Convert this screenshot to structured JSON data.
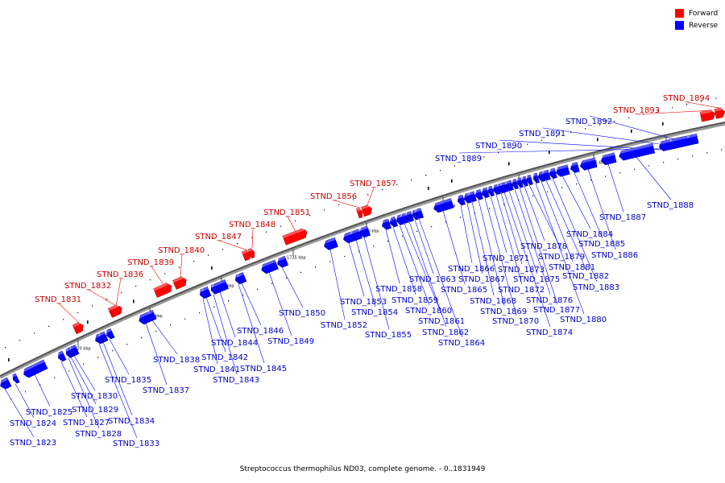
{
  "title": "Streptococcus thermophilus ND03, complete genome. - 0..1831949",
  "legend": {
    "forward": {
      "label": "Forward",
      "color": "#ff0000"
    },
    "reverse": {
      "label": "Reverse",
      "color": "#0000ff"
    }
  },
  "colors": {
    "forward": "#ff0000",
    "reverse": "#0000ff",
    "forward_text": "#cc0000",
    "reverse_text": "#0000cc"
  },
  "ticks": [
    "1720 kbp",
    "1725 kbp",
    "1730 kbp",
    "1735 kbp",
    "1740 kbp",
    "1745 kbp",
    "1750 kbp",
    "1755 kbp",
    "1760 kbp"
  ],
  "genes": [
    {
      "name": "STND_1823",
      "strand": "reverse"
    },
    {
      "name": "STND_1824",
      "strand": "reverse"
    },
    {
      "name": "STND_1825",
      "strand": "reverse"
    },
    {
      "name": "STND_1827",
      "strand": "reverse"
    },
    {
      "name": "STND_1828",
      "strand": "reverse"
    },
    {
      "name": "STND_1829",
      "strand": "reverse"
    },
    {
      "name": "STND_1830",
      "strand": "reverse"
    },
    {
      "name": "STND_1831",
      "strand": "forward"
    },
    {
      "name": "STND_1832",
      "strand": "forward"
    },
    {
      "name": "STND_1833",
      "strand": "reverse"
    },
    {
      "name": "STND_1834",
      "strand": "reverse"
    },
    {
      "name": "STND_1835",
      "strand": "reverse"
    },
    {
      "name": "STND_1836",
      "strand": "forward"
    },
    {
      "name": "STND_1837",
      "strand": "reverse"
    },
    {
      "name": "STND_1838",
      "strand": "reverse"
    },
    {
      "name": "STND_1839",
      "strand": "forward"
    },
    {
      "name": "STND_1840",
      "strand": "forward"
    },
    {
      "name": "STND_1841",
      "strand": "reverse"
    },
    {
      "name": "STND_1842",
      "strand": "reverse"
    },
    {
      "name": "STND_1843",
      "strand": "reverse"
    },
    {
      "name": "STND_1844",
      "strand": "reverse"
    },
    {
      "name": "STND_1845",
      "strand": "reverse"
    },
    {
      "name": "STND_1846",
      "strand": "reverse"
    },
    {
      "name": "STND_1847",
      "strand": "forward"
    },
    {
      "name": "STND_1848",
      "strand": "forward"
    },
    {
      "name": "STND_1849",
      "strand": "reverse"
    },
    {
      "name": "STND_1850",
      "strand": "reverse"
    },
    {
      "name": "STND_1851",
      "strand": "forward"
    },
    {
      "name": "STND_1852",
      "strand": "reverse"
    },
    {
      "name": "STND_1853",
      "strand": "reverse"
    },
    {
      "name": "STND_1854",
      "strand": "reverse"
    },
    {
      "name": "STND_1855",
      "strand": "reverse"
    },
    {
      "name": "STND_1856",
      "strand": "forward"
    },
    {
      "name": "STND_1857",
      "strand": "forward"
    },
    {
      "name": "STND_1858",
      "strand": "reverse"
    },
    {
      "name": "STND_1859",
      "strand": "reverse"
    },
    {
      "name": "STND_1860",
      "strand": "reverse"
    },
    {
      "name": "STND_1861",
      "strand": "reverse"
    },
    {
      "name": "STND_1862",
      "strand": "reverse"
    },
    {
      "name": "STND_1863",
      "strand": "reverse"
    },
    {
      "name": "STND_1864",
      "strand": "reverse"
    },
    {
      "name": "STND_1865",
      "strand": "reverse"
    },
    {
      "name": "STND_1866",
      "strand": "reverse"
    },
    {
      "name": "STND_1867",
      "strand": "reverse"
    },
    {
      "name": "STND_1868",
      "strand": "reverse"
    },
    {
      "name": "STND_1869",
      "strand": "reverse"
    },
    {
      "name": "STND_1870",
      "strand": "reverse"
    },
    {
      "name": "STND_1871",
      "strand": "reverse"
    },
    {
      "name": "STND_1872",
      "strand": "reverse"
    },
    {
      "name": "STND_1873",
      "strand": "reverse"
    },
    {
      "name": "STND_1874",
      "strand": "reverse"
    },
    {
      "name": "STND_1875",
      "strand": "reverse"
    },
    {
      "name": "STND_1876",
      "strand": "reverse"
    },
    {
      "name": "STND_1877",
      "strand": "reverse"
    },
    {
      "name": "STND_1878",
      "strand": "reverse"
    },
    {
      "name": "STND_1879",
      "strand": "reverse"
    },
    {
      "name": "STND_1880",
      "strand": "reverse"
    },
    {
      "name": "STND_1881",
      "strand": "reverse"
    },
    {
      "name": "STND_1882",
      "strand": "reverse"
    },
    {
      "name": "STND_1883",
      "strand": "reverse"
    },
    {
      "name": "STND_1884",
      "strand": "reverse"
    },
    {
      "name": "STND_1885",
      "strand": "reverse"
    },
    {
      "name": "STND_1886",
      "strand": "reverse"
    },
    {
      "name": "STND_1887",
      "strand": "reverse"
    },
    {
      "name": "STND_1888",
      "strand": "reverse"
    },
    {
      "name": "STND_1889",
      "strand": "reverse"
    },
    {
      "name": "STND_1890",
      "strand": "reverse"
    },
    {
      "name": "STND_1891",
      "strand": "reverse"
    },
    {
      "name": "STND_1892",
      "strand": "reverse"
    },
    {
      "name": "STND_1893",
      "strand": "forward"
    },
    {
      "name": "STND_1894",
      "strand": "forward"
    }
  ]
}
